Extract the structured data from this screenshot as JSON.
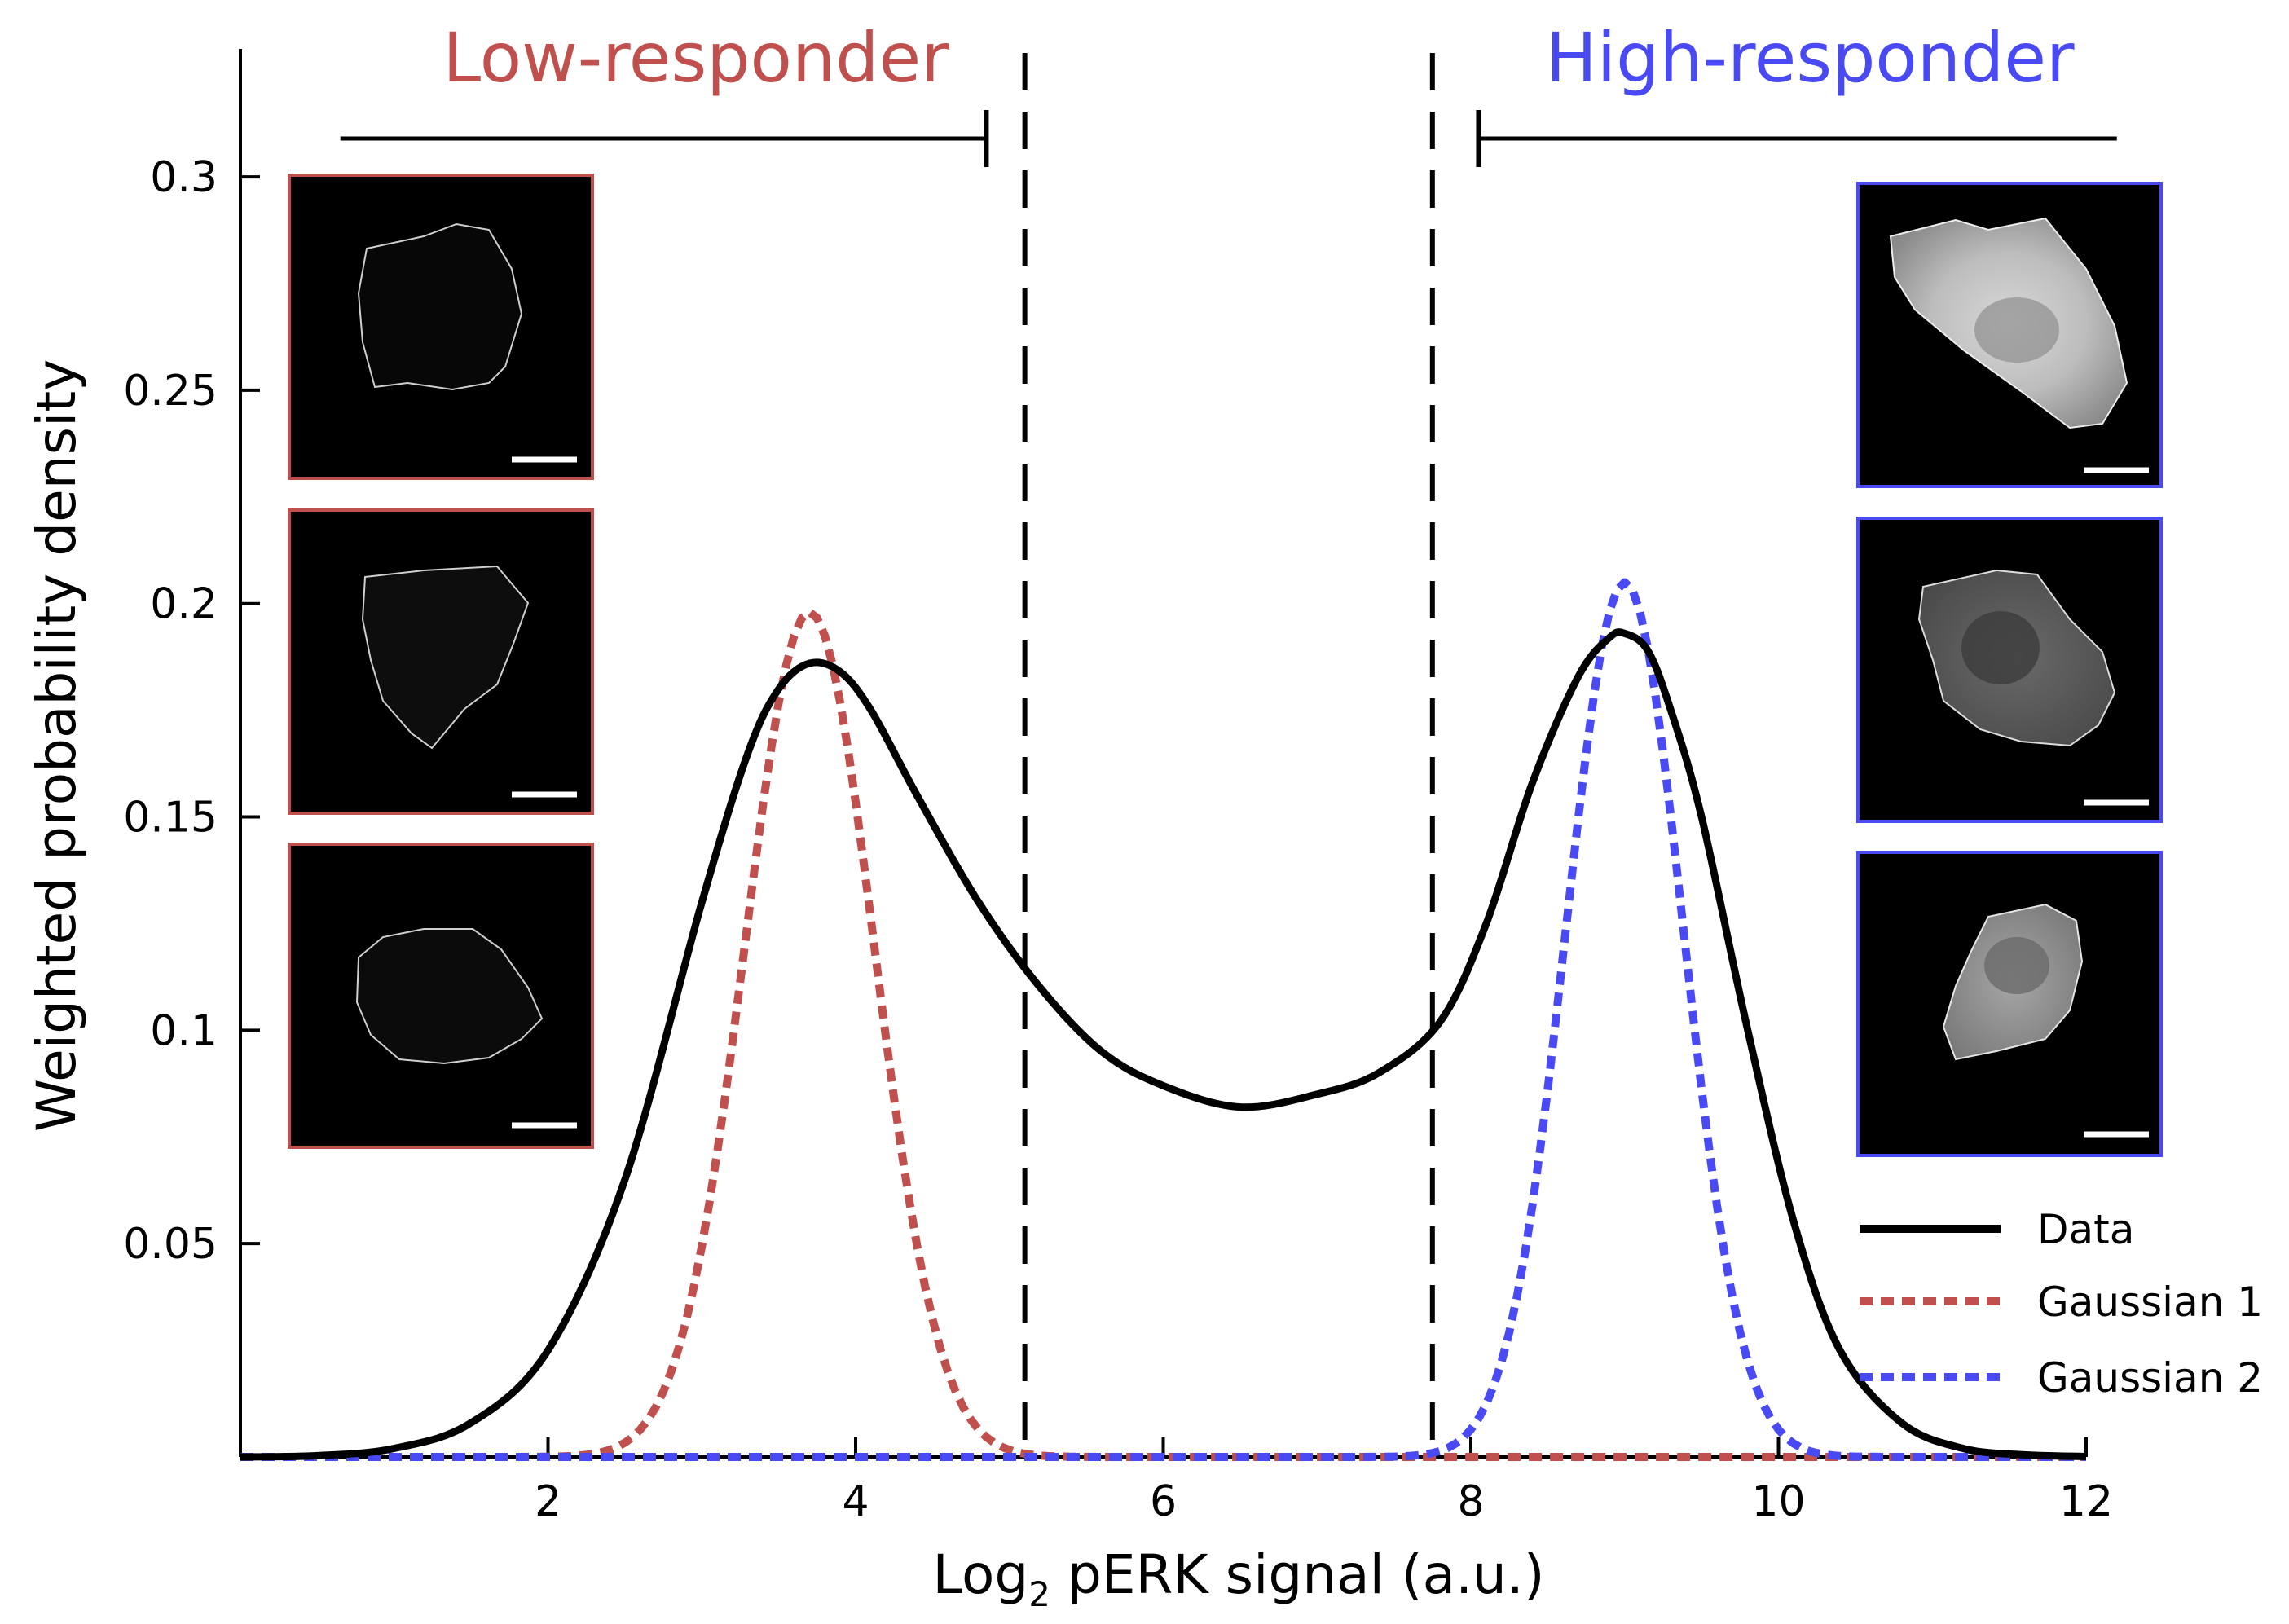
{
  "chart_data": {
    "type": "line",
    "title": "",
    "xlabel": {
      "prefix": "Log",
      "subscript": "2",
      "suffix": " pERK signal (a.u.)"
    },
    "ylabel": "Weighted probability density",
    "xlim": [
      0,
      12
    ],
    "ylim": [
      0,
      0.33
    ],
    "x_ticks": [
      2,
      4,
      6,
      8,
      10,
      12
    ],
    "x_tick_labels": [
      "2",
      "4",
      "6",
      "8",
      "10",
      "12"
    ],
    "y_ticks": [
      0.05,
      0.1,
      0.15,
      0.2,
      0.25,
      0.3
    ],
    "y_tick_labels": [
      "0.05",
      "0.1",
      "0.15",
      "0.2",
      "0.25",
      "0.3"
    ],
    "grid": false,
    "legend_position": "bottom-right",
    "series": [
      {
        "name": "Data",
        "style": "solid",
        "color": "#000000",
        "x": [
          0,
          0.5,
          1.0,
          1.5,
          2.0,
          2.5,
          3.0,
          3.3,
          3.5,
          3.7,
          3.9,
          4.1,
          4.4,
          4.8,
          5.2,
          5.6,
          6.0,
          6.5,
          7.0,
          7.4,
          7.8,
          8.1,
          8.4,
          8.7,
          8.9,
          9.0,
          9.15,
          9.3,
          9.5,
          9.8,
          10.1,
          10.4,
          10.8,
          11.2,
          11.6,
          12.0
        ],
        "y": [
          0.0,
          0.0003,
          0.002,
          0.008,
          0.025,
          0.065,
          0.13,
          0.165,
          0.18,
          0.186,
          0.184,
          0.175,
          0.155,
          0.13,
          0.11,
          0.095,
          0.087,
          0.082,
          0.085,
          0.09,
          0.102,
          0.125,
          0.158,
          0.183,
          0.192,
          0.193,
          0.189,
          0.175,
          0.15,
          0.1,
          0.055,
          0.025,
          0.008,
          0.002,
          0.0005,
          0.0001
        ]
      },
      {
        "name": "Gaussian 1",
        "style": "dotted",
        "color": "#c0504d",
        "mu": 3.7,
        "sigma": 0.42,
        "peak": 0.198
      },
      {
        "name": "Gaussian 2",
        "style": "dotted",
        "color": "#4a4af4",
        "mu": 9.0,
        "sigma": 0.38,
        "peak": 0.205
      }
    ],
    "thresholds": [
      5.1,
      7.75
    ],
    "groups": [
      {
        "label": "Low-responder",
        "color": "#c0504d",
        "x_range": [
          0.65,
          4.85
        ]
      },
      {
        "label": "High-responder",
        "color": "#4a4af4",
        "x_range": [
          8.05,
          12.2
        ]
      }
    ],
    "inset_images": {
      "left_border_color": "#c0504d",
      "right_border_color": "#4a4af4",
      "count_per_side": 3
    }
  }
}
